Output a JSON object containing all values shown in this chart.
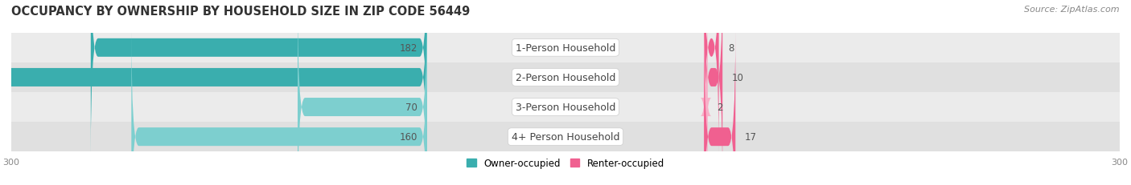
{
  "title": "OCCUPANCY BY OWNERSHIP BY HOUSEHOLD SIZE IN ZIP CODE 56449",
  "source": "Source: ZipAtlas.com",
  "categories": [
    "1-Person Household",
    "2-Person Household",
    "3-Person Household",
    "4+ Person Household"
  ],
  "owner_values": [
    182,
    277,
    70,
    160
  ],
  "renter_values": [
    8,
    10,
    2,
    17
  ],
  "owner_color_dark": "#3AAEAE",
  "owner_color_light": "#7DCFCF",
  "renter_color_dark": "#F06090",
  "renter_color_light": "#F8B0C8",
  "row_bg_colors": [
    "#EBEBEB",
    "#E0E0E0",
    "#EBEBEB",
    "#E0E0E0"
  ],
  "x_max": 300,
  "x_min": -300,
  "title_fontsize": 10.5,
  "source_fontsize": 8,
  "bar_label_fontsize": 8.5,
  "cat_label_fontsize": 9,
  "axis_label_fontsize": 8,
  "legend_fontsize": 8.5,
  "background_color": "#FFFFFF",
  "owner_darker": [
    true,
    true,
    false,
    false
  ],
  "renter_darker": [
    true,
    true,
    false,
    true
  ]
}
